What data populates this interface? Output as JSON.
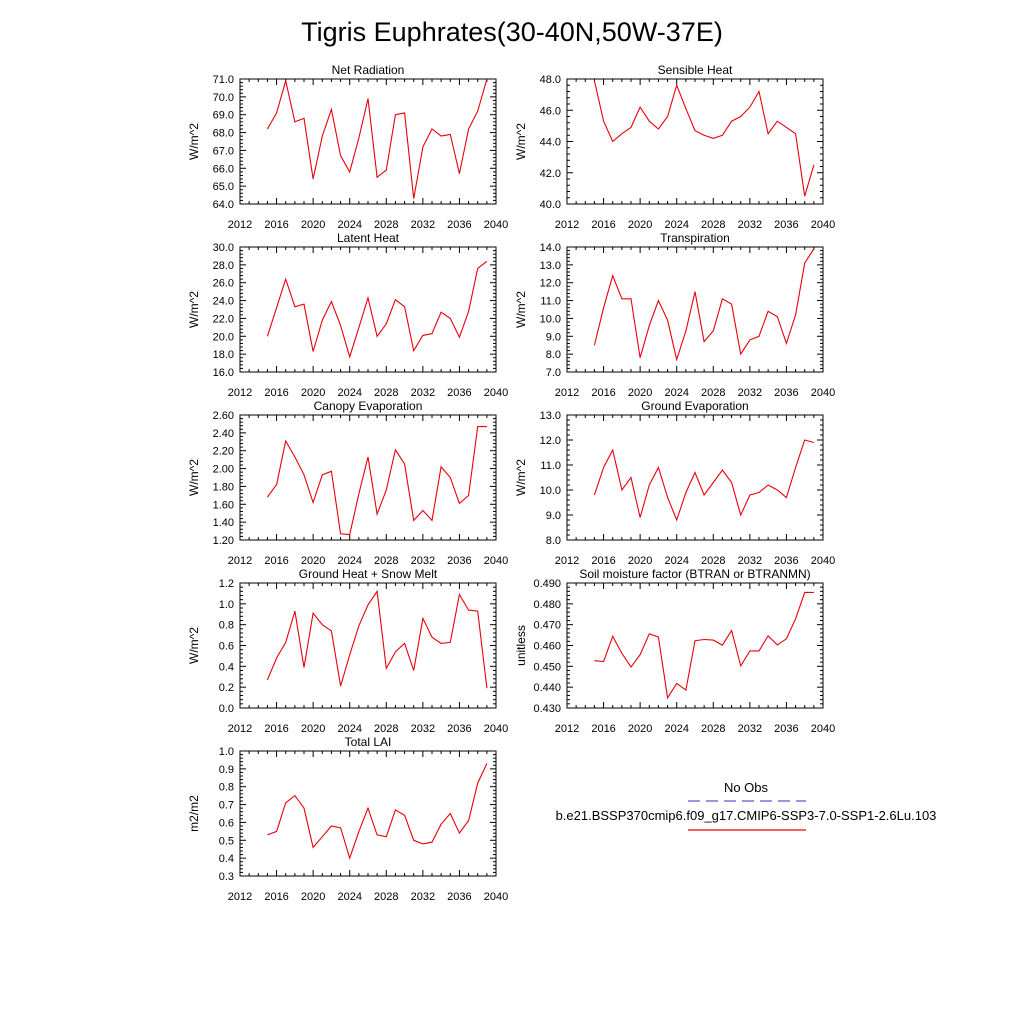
{
  "figure": {
    "title": "Tigris Euphrates(30-40N,50W-37E)"
  },
  "legend": {
    "obs_label": "No Obs",
    "model_label": "b.e21.BSSP370cmip6.f09_g17.CMIP6-SSP3-7.0-SSP1-2.6Lu.103",
    "obs_color": "#5a5ac8",
    "model_color": "#e8000b"
  },
  "chart_data": [
    {
      "type": "line",
      "title": "Net Radiation",
      "ylabel": "W/m^2",
      "xlim": [
        2012,
        2040
      ],
      "ylim": [
        64.0,
        71.0
      ],
      "xticks": [
        "2012",
        "2016",
        "2020",
        "2024",
        "2028",
        "2032",
        "2036",
        "2040"
      ],
      "yticks": [
        "64.0",
        "65.0",
        "66.0",
        "67.0",
        "68.0",
        "69.0",
        "70.0",
        "71.0"
      ],
      "x": [
        2015,
        2016,
        2017,
        2018,
        2019,
        2020,
        2021,
        2022,
        2023,
        2024,
        2025,
        2026,
        2027,
        2028,
        2029,
        2030,
        2031,
        2032,
        2033,
        2034,
        2035,
        2036,
        2037,
        2038,
        2039
      ],
      "values": [
        68.2,
        69.1,
        70.9,
        68.6,
        68.8,
        65.4,
        67.8,
        69.3,
        66.7,
        65.8,
        67.7,
        69.9,
        65.5,
        65.9,
        69.0,
        69.1,
        64.3,
        67.2,
        68.2,
        67.8,
        67.9,
        65.7,
        68.2,
        69.2,
        71.0
      ],
      "series": [
        {
          "name": "b.e21.BSSP370cmip6.f09_g17.CMIP6-SSP3-7.0-SSP1-2.6Lu.103"
        }
      ]
    },
    {
      "type": "line",
      "title": "Sensible Heat",
      "ylabel": "W/m^2",
      "xlim": [
        2012,
        2040
      ],
      "ylim": [
        40.0,
        48.0
      ],
      "xticks": [
        "2012",
        "2016",
        "2020",
        "2024",
        "2028",
        "2032",
        "2036",
        "2040"
      ],
      "yticks": [
        "40.0",
        "42.0",
        "44.0",
        "46.0",
        "48.0"
      ],
      "x": [
        2015,
        2016,
        2017,
        2018,
        2019,
        2020,
        2021,
        2022,
        2023,
        2024,
        2025,
        2026,
        2027,
        2028,
        2029,
        2030,
        2031,
        2032,
        2033,
        2034,
        2035,
        2036,
        2037,
        2038,
        2039
      ],
      "values": [
        47.9,
        45.3,
        44.0,
        44.5,
        44.9,
        46.2,
        45.3,
        44.8,
        45.6,
        47.6,
        46.1,
        44.7,
        44.4,
        44.2,
        44.4,
        45.3,
        45.6,
        46.2,
        47.2,
        44.5,
        45.3,
        44.9,
        44.5,
        40.5,
        42.5
      ],
      "series": [
        {
          "name": "b.e21.BSSP370cmip6.f09_g17.CMIP6-SSP3-7.0-SSP1-2.6Lu.103"
        }
      ]
    },
    {
      "type": "line",
      "title": "Latent Heat",
      "ylabel": "W/m^2",
      "xlim": [
        2012,
        2040
      ],
      "ylim": [
        16.0,
        30.0
      ],
      "xticks": [
        "2012",
        "2016",
        "2020",
        "2024",
        "2028",
        "2032",
        "2036",
        "2040"
      ],
      "yticks": [
        "16.0",
        "18.0",
        "20.0",
        "22.0",
        "24.0",
        "26.0",
        "28.0",
        "30.0"
      ],
      "x": [
        2015,
        2016,
        2017,
        2018,
        2019,
        2020,
        2021,
        2022,
        2023,
        2024,
        2025,
        2026,
        2027,
        2028,
        2029,
        2030,
        2031,
        2032,
        2033,
        2034,
        2035,
        2036,
        2037,
        2038,
        2039
      ],
      "values": [
        20.0,
        23.2,
        26.4,
        23.3,
        23.6,
        18.3,
        21.8,
        23.9,
        21.2,
        17.7,
        21.0,
        24.3,
        20.0,
        21.4,
        24.1,
        23.3,
        18.4,
        20.1,
        20.3,
        22.7,
        22.0,
        19.9,
        22.8,
        27.6,
        28.4
      ],
      "series": [
        {
          "name": "b.e21.BSSP370cmip6.f09_g17.CMIP6-SSP3-7.0-SSP1-2.6Lu.103"
        }
      ]
    },
    {
      "type": "line",
      "title": "Transpiration",
      "ylabel": "W/m^2",
      "xlim": [
        2012,
        2040
      ],
      "ylim": [
        7.0,
        14.0
      ],
      "xticks": [
        "2012",
        "2016",
        "2020",
        "2024",
        "2028",
        "2032",
        "2036",
        "2040"
      ],
      "yticks": [
        "7.0",
        "8.0",
        "9.0",
        "10.0",
        "11.0",
        "12.0",
        "13.0",
        "14.0"
      ],
      "x": [
        2015,
        2016,
        2017,
        2018,
        2019,
        2020,
        2021,
        2022,
        2023,
        2024,
        2025,
        2026,
        2027,
        2028,
        2029,
        2030,
        2031,
        2032,
        2033,
        2034,
        2035,
        2036,
        2037,
        2038,
        2039
      ],
      "values": [
        8.5,
        10.6,
        12.4,
        11.1,
        11.1,
        7.8,
        9.6,
        11.0,
        9.9,
        7.7,
        9.3,
        11.5,
        8.7,
        9.3,
        11.1,
        10.8,
        8.0,
        8.8,
        9.0,
        10.4,
        10.1,
        8.6,
        10.2,
        13.1,
        13.9
      ],
      "series": [
        {
          "name": "b.e21.BSSP370cmip6.f09_g17.CMIP6-SSP3-7.0-SSP1-2.6Lu.103"
        }
      ]
    },
    {
      "type": "line",
      "title": "Canopy Evaporation",
      "ylabel": "W/m^2",
      "xlim": [
        2012,
        2040
      ],
      "ylim": [
        1.2,
        2.6
      ],
      "xticks": [
        "2012",
        "2016",
        "2020",
        "2024",
        "2028",
        "2032",
        "2036",
        "2040"
      ],
      "yticks": [
        "1.20",
        "1.40",
        "1.60",
        "1.80",
        "2.00",
        "2.20",
        "2.40",
        "2.60"
      ],
      "x": [
        2015,
        2016,
        2017,
        2018,
        2019,
        2020,
        2021,
        2022,
        2023,
        2024,
        2025,
        2026,
        2027,
        2028,
        2029,
        2030,
        2031,
        2032,
        2033,
        2034,
        2035,
        2036,
        2037,
        2038,
        2039
      ],
      "values": [
        1.68,
        1.82,
        2.31,
        2.13,
        1.93,
        1.62,
        1.93,
        1.97,
        1.27,
        1.26,
        1.72,
        2.13,
        1.49,
        1.76,
        2.21,
        2.05,
        1.42,
        1.53,
        1.42,
        2.02,
        1.9,
        1.61,
        1.7,
        2.47,
        2.47
      ],
      "series": [
        {
          "name": "b.e21.BSSP370cmip6.f09_g17.CMIP6-SSP3-7.0-SSP1-2.6Lu.103"
        }
      ]
    },
    {
      "type": "line",
      "title": "Ground Evaporation",
      "ylabel": "W/m^2",
      "xlim": [
        2012,
        2040
      ],
      "ylim": [
        8.0,
        13.0
      ],
      "xticks": [
        "2012",
        "2016",
        "2020",
        "2024",
        "2028",
        "2032",
        "2036",
        "2040"
      ],
      "yticks": [
        "8.0",
        "9.0",
        "10.0",
        "11.0",
        "12.0",
        "13.0"
      ],
      "x": [
        2015,
        2016,
        2017,
        2018,
        2019,
        2020,
        2021,
        2022,
        2023,
        2024,
        2025,
        2026,
        2027,
        2028,
        2029,
        2030,
        2031,
        2032,
        2033,
        2034,
        2035,
        2036,
        2037,
        2038,
        2039
      ],
      "values": [
        9.8,
        10.9,
        11.6,
        10.0,
        10.5,
        8.9,
        10.2,
        10.9,
        9.7,
        8.8,
        9.9,
        10.7,
        9.8,
        10.3,
        10.8,
        10.3,
        9.0,
        9.8,
        9.9,
        10.2,
        10.0,
        9.7,
        10.9,
        12.0,
        11.9
      ],
      "series": [
        {
          "name": "b.e21.BSSP370cmip6.f09_g17.CMIP6-SSP3-7.0-SSP1-2.6Lu.103"
        }
      ]
    },
    {
      "type": "line",
      "title": "Ground Heat + Snow Melt",
      "ylabel": "W/m^2",
      "xlim": [
        2012,
        2040
      ],
      "ylim": [
        0.0,
        1.2
      ],
      "xticks": [
        "2012",
        "2016",
        "2020",
        "2024",
        "2028",
        "2032",
        "2036",
        "2040"
      ],
      "yticks": [
        "0.0",
        "0.2",
        "0.4",
        "0.6",
        "0.8",
        "1.0",
        "1.2"
      ],
      "x": [
        2015,
        2016,
        2017,
        2018,
        2019,
        2020,
        2021,
        2022,
        2023,
        2024,
        2025,
        2026,
        2027,
        2028,
        2029,
        2030,
        2031,
        2032,
        2033,
        2034,
        2035,
        2036,
        2037,
        2038,
        2039
      ],
      "values": [
        0.27,
        0.48,
        0.63,
        0.93,
        0.39,
        0.91,
        0.8,
        0.74,
        0.21,
        0.51,
        0.79,
        0.99,
        1.12,
        0.38,
        0.54,
        0.62,
        0.36,
        0.86,
        0.68,
        0.62,
        0.63,
        1.09,
        0.94,
        0.93,
        0.19
      ],
      "series": [
        {
          "name": "b.e21.BSSP370cmip6.f09_g17.CMIP6-SSP3-7.0-SSP1-2.6Lu.103"
        }
      ]
    },
    {
      "type": "line",
      "title": "Soil moisture factor (BTRAN or BTRANMN)",
      "ylabel": "unitless",
      "xlim": [
        2012,
        2040
      ],
      "ylim": [
        0.43,
        0.49
      ],
      "xticks": [
        "2012",
        "2016",
        "2020",
        "2024",
        "2028",
        "2032",
        "2036",
        "2040"
      ],
      "yticks": [
        "0.430",
        "0.440",
        "0.450",
        "0.460",
        "0.470",
        "0.480",
        "0.490"
      ],
      "x": [
        2015,
        2016,
        2017,
        2018,
        2019,
        2020,
        2021,
        2022,
        2023,
        2024,
        2025,
        2026,
        2027,
        2028,
        2029,
        2030,
        2031,
        2032,
        2033,
        2034,
        2035,
        2036,
        2037,
        2038,
        2039
      ],
      "values": [
        0.4527,
        0.4523,
        0.4644,
        0.4562,
        0.4497,
        0.4556,
        0.4656,
        0.4641,
        0.4349,
        0.4418,
        0.4386,
        0.4623,
        0.4629,
        0.4626,
        0.4602,
        0.4672,
        0.4502,
        0.4574,
        0.4574,
        0.4646,
        0.4603,
        0.4632,
        0.4728,
        0.4855,
        0.4855
      ],
      "series": [
        {
          "name": "b.e21.BSSP370cmip6.f09_g17.CMIP6-SSP3-7.0-SSP1-2.6Lu.103"
        }
      ]
    },
    {
      "type": "line",
      "title": "Total LAI",
      "ylabel": "m2/m2",
      "xlim": [
        2012,
        2040
      ],
      "ylim": [
        0.3,
        1.0
      ],
      "xticks": [
        "2012",
        "2016",
        "2020",
        "2024",
        "2028",
        "2032",
        "2036",
        "2040"
      ],
      "yticks": [
        "0.3",
        "0.4",
        "0.5",
        "0.6",
        "0.7",
        "0.8",
        "0.9",
        "1.0"
      ],
      "x": [
        2015,
        2016,
        2017,
        2018,
        2019,
        2020,
        2021,
        2022,
        2023,
        2024,
        2025,
        2026,
        2027,
        2028,
        2029,
        2030,
        2031,
        2032,
        2033,
        2034,
        2035,
        2036,
        2037,
        2038,
        2039
      ],
      "values": [
        0.53,
        0.55,
        0.71,
        0.75,
        0.68,
        0.46,
        0.52,
        0.58,
        0.57,
        0.4,
        0.55,
        0.68,
        0.53,
        0.52,
        0.67,
        0.64,
        0.5,
        0.48,
        0.49,
        0.59,
        0.65,
        0.54,
        0.61,
        0.82,
        0.93
      ],
      "series": [
        {
          "name": "b.e21.BSSP370cmip6.f09_g17.CMIP6-SSP3-7.0-SSP1-2.6Lu.103"
        }
      ]
    }
  ]
}
